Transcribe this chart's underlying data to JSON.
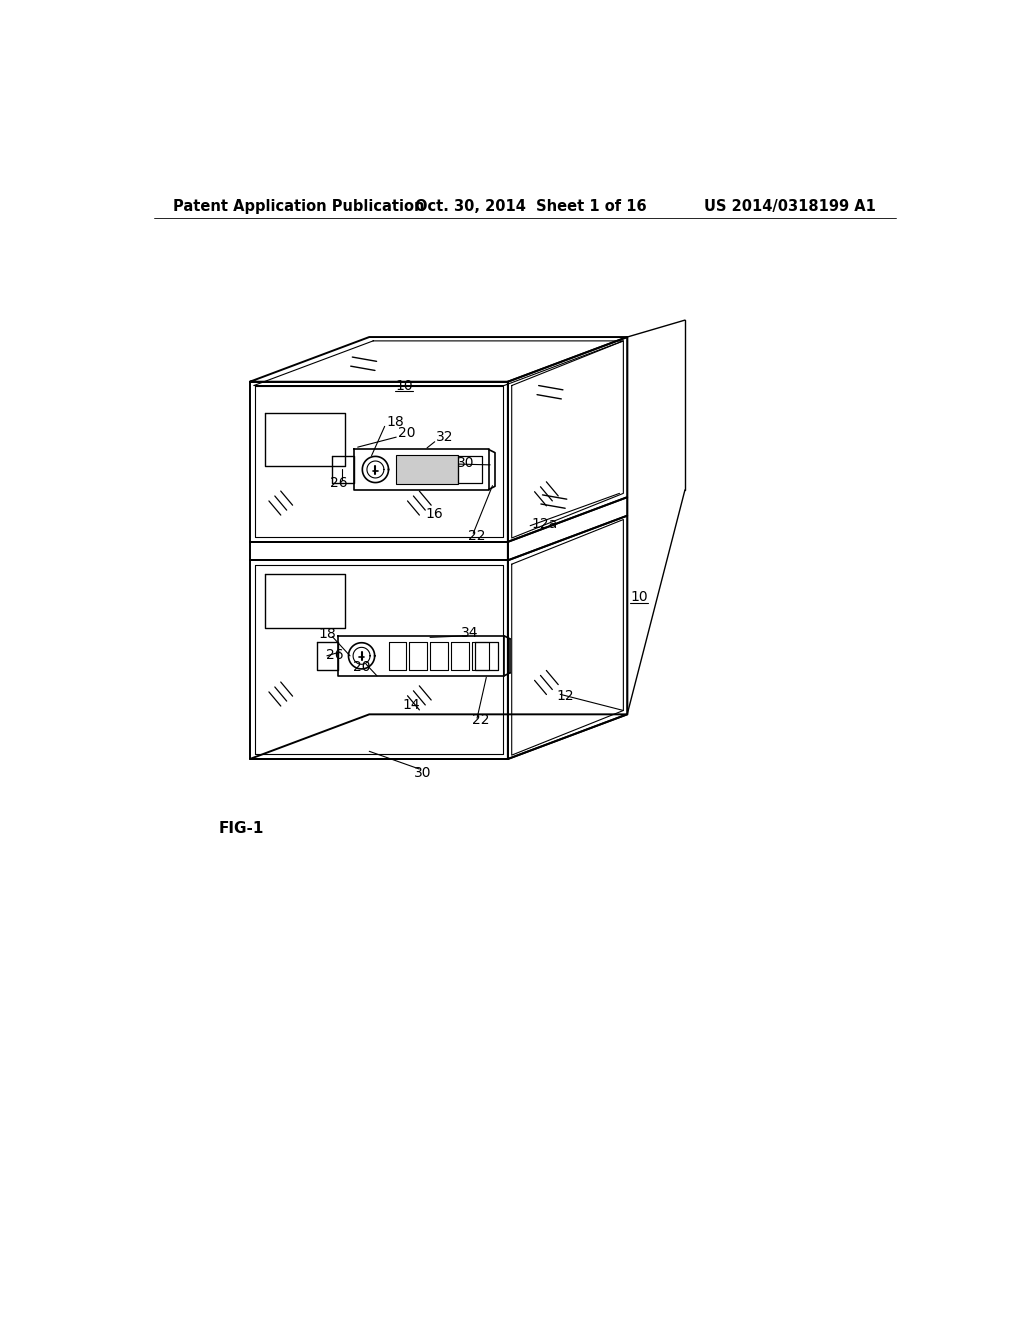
{
  "title_left": "Patent Application Publication",
  "title_mid": "Oct. 30, 2014  Sheet 1 of 16",
  "title_right": "US 2014/0318199 A1",
  "fig_label": "FIG-1",
  "bg_color": "#ffffff",
  "line_color": "#000000",
  "header_fontsize": 10.5,
  "label_fontsize": 10
}
